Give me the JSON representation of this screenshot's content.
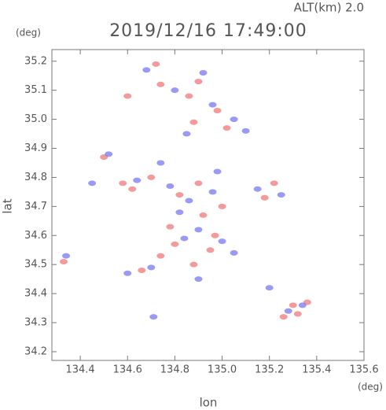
{
  "chart_data": {
    "type": "scatter",
    "header": "ALT(km) 2.0",
    "title": "2019/12/16 17:49:00",
    "x_label": "lon",
    "y_label": "lat",
    "x_unit": "(deg)",
    "y_unit": "(deg)",
    "xlim": [
      134.28,
      135.6
    ],
    "ylim": [
      34.17,
      35.24
    ],
    "xticks": [
      134.4,
      134.6,
      134.8,
      135.0,
      135.2,
      135.4,
      135.6
    ],
    "yticks": [
      34.2,
      34.3,
      34.4,
      34.5,
      34.6,
      34.7,
      34.8,
      34.9,
      35.0,
      35.1,
      35.2
    ],
    "xtick_labels": [
      "134.4",
      "134.6",
      "134.8",
      "135.0",
      "135.2",
      "135.4",
      "135.6"
    ],
    "ytick_labels": [
      "34.2",
      "34.3",
      "34.4",
      "34.5",
      "34.6",
      "34.7",
      "34.8",
      "34.9",
      "35.0",
      "35.1",
      "35.2"
    ],
    "series": [
      {
        "color": "#f07878",
        "x": [
          134.72,
          134.74,
          134.9,
          134.86,
          134.6,
          134.98,
          135.02,
          134.88,
          134.5,
          134.58,
          134.62,
          134.7,
          134.82,
          134.9,
          135.22,
          134.92,
          134.97,
          134.8,
          134.74,
          134.66,
          134.88,
          134.33,
          135.3,
          135.26,
          135.36,
          134.95,
          135.0,
          134.78,
          135.18,
          135.32
        ],
        "y": [
          35.19,
          35.12,
          35.13,
          35.08,
          35.08,
          35.03,
          34.97,
          34.99,
          34.87,
          34.78,
          34.76,
          34.8,
          34.74,
          34.78,
          34.78,
          34.67,
          34.6,
          34.57,
          34.53,
          34.48,
          34.5,
          34.51,
          34.36,
          34.32,
          34.37,
          34.55,
          34.7,
          34.63,
          34.73,
          34.33
        ]
      },
      {
        "color": "#7878f0",
        "x": [
          134.68,
          134.92,
          134.8,
          134.96,
          135.05,
          135.1,
          134.85,
          134.52,
          134.45,
          134.64,
          134.78,
          134.86,
          134.96,
          135.15,
          135.25,
          134.9,
          135.0,
          135.05,
          134.84,
          134.7,
          134.6,
          134.9,
          134.34,
          135.28,
          135.34,
          134.71,
          134.82,
          134.74,
          134.98,
          135.2
        ],
        "y": [
          35.17,
          35.16,
          35.1,
          35.05,
          35.0,
          34.96,
          34.95,
          34.88,
          34.78,
          34.79,
          34.77,
          34.72,
          34.75,
          34.76,
          34.74,
          34.62,
          34.58,
          34.54,
          34.59,
          34.49,
          34.47,
          34.45,
          34.53,
          34.34,
          34.36,
          34.32,
          34.68,
          34.85,
          34.82,
          34.42
        ]
      }
    ]
  }
}
